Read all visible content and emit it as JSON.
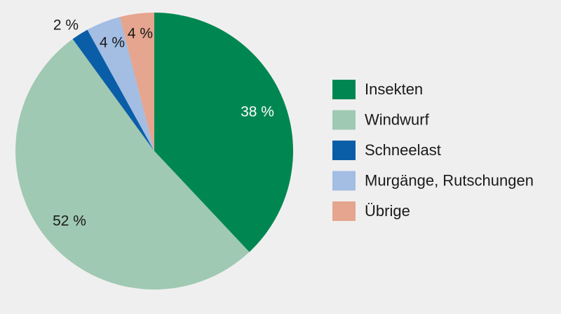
{
  "chart_data": {
    "type": "pie",
    "start": "top",
    "direction": "clockwise",
    "slices": [
      {
        "name": "Insekten",
        "value": 38,
        "label": "38 %",
        "color": "#008751",
        "label_color": "#ffffff"
      },
      {
        "name": "Windwurf",
        "value": 52,
        "label": "52 %",
        "color": "#9fc9b2",
        "label_color": "#1a1a1a"
      },
      {
        "name": "Schneelast",
        "value": 2,
        "label": "2 %",
        "color": "#0a5ea8",
        "label_color": "#1a1a1a"
      },
      {
        "name": "Murgänge, Rutschungen",
        "value": 4,
        "label": "4 %",
        "color": "#a3bde3",
        "label_color": "#1a1a1a"
      },
      {
        "name": "Übrige",
        "value": 4,
        "label": "4 %",
        "color": "#e5a58e",
        "label_color": "#1a1a1a"
      }
    ],
    "legend": {
      "placement": "right",
      "items": [
        "Insekten",
        "Windwurf",
        "Schneelast",
        "Murgänge, Rutschungen",
        "Übrige"
      ]
    }
  }
}
